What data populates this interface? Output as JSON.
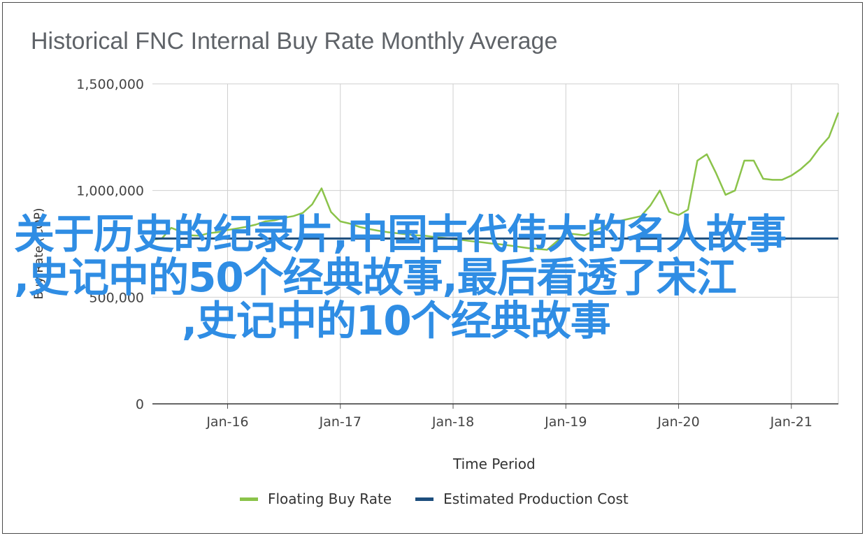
{
  "chart_data": {
    "type": "line",
    "title": "Historical FNC Internal Buy Rate Monthly Average",
    "xlabel": "Time Period",
    "ylabel": "Buy Rate (COP)",
    "x_tick_labels": [
      "Jan-16",
      "Jan-17",
      "Jan-18",
      "Jan-19",
      "Jan-20",
      "Jan-21"
    ],
    "y_tick_labels": [
      "0",
      "500,000",
      "1,000,000",
      "1,500,000"
    ],
    "ylim": [
      0,
      1500000
    ],
    "xlim": [
      "2015-05",
      "2021-06"
    ],
    "grid": true,
    "legend_position": "bottom",
    "series": [
      {
        "name": "Floating Buy Rate",
        "color": "#8bc34a",
        "points": [
          [
            "2015-05",
            770000
          ],
          [
            "2015-06",
            775000
          ],
          [
            "2015-07",
            825000
          ],
          [
            "2015-08",
            808000
          ],
          [
            "2015-09",
            790000
          ],
          [
            "2015-10",
            788000
          ],
          [
            "2015-11",
            800000
          ],
          [
            "2015-12",
            805000
          ],
          [
            "2016-01",
            815000
          ],
          [
            "2016-02",
            822000
          ],
          [
            "2016-03",
            830000
          ],
          [
            "2016-04",
            840000
          ],
          [
            "2016-05",
            855000
          ],
          [
            "2016-06",
            860000
          ],
          [
            "2016-07",
            872000
          ],
          [
            "2016-08",
            880000
          ],
          [
            "2016-09",
            895000
          ],
          [
            "2016-10",
            935000
          ],
          [
            "2016-11",
            1010000
          ],
          [
            "2016-12",
            900000
          ],
          [
            "2017-01",
            855000
          ],
          [
            "2017-02",
            845000
          ],
          [
            "2017-03",
            830000
          ],
          [
            "2017-04",
            820000
          ],
          [
            "2017-05",
            812000
          ],
          [
            "2017-06",
            805000
          ],
          [
            "2017-07",
            800000
          ],
          [
            "2017-08",
            795000
          ],
          [
            "2017-09",
            790000
          ],
          [
            "2017-10",
            788000
          ],
          [
            "2017-11",
            782000
          ],
          [
            "2017-12",
            778000
          ],
          [
            "2018-01",
            772000
          ],
          [
            "2018-02",
            768000
          ],
          [
            "2018-03",
            762000
          ],
          [
            "2018-04",
            758000
          ],
          [
            "2018-05",
            752000
          ],
          [
            "2018-06",
            748000
          ],
          [
            "2018-07",
            742000
          ],
          [
            "2018-08",
            736000
          ],
          [
            "2018-09",
            730000
          ],
          [
            "2018-10",
            726000
          ],
          [
            "2018-11",
            722000
          ],
          [
            "2018-12",
            760000
          ],
          [
            "2019-01",
            800000
          ],
          [
            "2019-02",
            795000
          ],
          [
            "2019-03",
            790000
          ],
          [
            "2019-04",
            810000
          ],
          [
            "2019-05",
            830000
          ],
          [
            "2019-06",
            850000
          ],
          [
            "2019-07",
            860000
          ],
          [
            "2019-08",
            870000
          ],
          [
            "2019-09",
            880000
          ],
          [
            "2019-10",
            930000
          ],
          [
            "2019-11",
            1000000
          ],
          [
            "2019-12",
            900000
          ],
          [
            "2020-01",
            885000
          ],
          [
            "2020-02",
            910000
          ],
          [
            "2020-03",
            1140000
          ],
          [
            "2020-04",
            1170000
          ],
          [
            "2020-05",
            1080000
          ],
          [
            "2020-06",
            980000
          ],
          [
            "2020-07",
            1000000
          ],
          [
            "2020-08",
            1140000
          ],
          [
            "2020-09",
            1140000
          ],
          [
            "2020-10",
            1055000
          ],
          [
            "2020-11",
            1050000
          ],
          [
            "2020-12",
            1050000
          ],
          [
            "2021-01",
            1070000
          ],
          [
            "2021-02",
            1100000
          ],
          [
            "2021-03",
            1140000
          ],
          [
            "2021-04",
            1200000
          ],
          [
            "2021-05",
            1250000
          ],
          [
            "2021-06",
            1365000
          ]
        ]
      },
      {
        "name": "Estimated Production Cost",
        "color": "#1d4e7d",
        "points": [
          [
            "2015-05",
            775000
          ],
          [
            "2021-06",
            775000
          ]
        ]
      }
    ]
  },
  "overlay": {
    "line1": "关于历史的纪录片,中国古代伟大的名人故事",
    "line2": ",史记中的50个经典故事,最后看透了宋江",
    "line3": ",史记中的10个经典故事",
    "color": "#2f8de4"
  }
}
